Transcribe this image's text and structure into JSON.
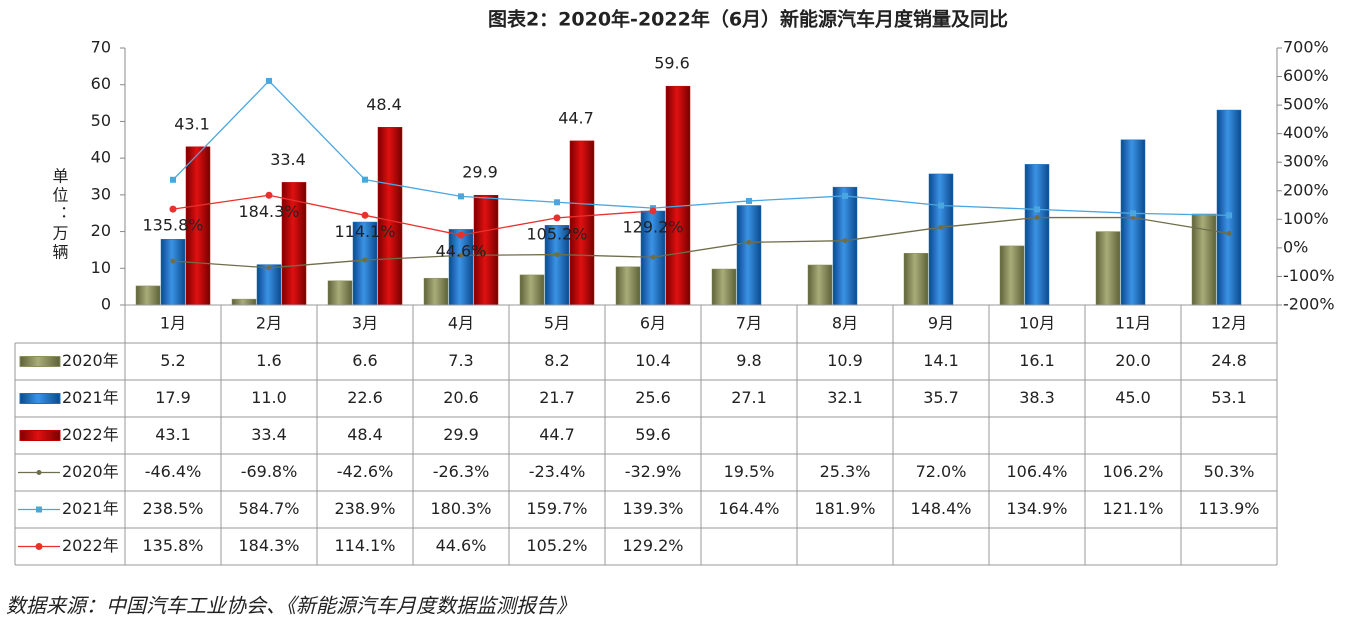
{
  "chart_data": {
    "type": "bar_line_table",
    "title": "图表2：2020年-2022年（6月）新能源汽车月度销量及同比",
    "y_label": "单位：万辆",
    "source": "数据来源：中国汽车工业协会、《新能源汽车月度数据监测报告》",
    "categories": [
      "1月",
      "2月",
      "3月",
      "4月",
      "5月",
      "6月",
      "7月",
      "8月",
      "9月",
      "10月",
      "11月",
      "12月"
    ],
    "ylim": [
      0,
      70
    ],
    "yticks": [
      0,
      10,
      20,
      30,
      40,
      50,
      60,
      70
    ],
    "y2lim": [
      -200,
      700
    ],
    "y2ticks": [
      {
        "value": -200,
        "label": "-200%"
      },
      {
        "value": -100,
        "label": "-100%"
      },
      {
        "value": 0,
        "label": "0%"
      },
      {
        "value": 100,
        "label": "100%"
      },
      {
        "value": 200,
        "label": "200%"
      },
      {
        "value": 300,
        "label": "300%"
      },
      {
        "value": 400,
        "label": "400%"
      },
      {
        "value": 500,
        "label": "500%"
      },
      {
        "value": 600,
        "label": "600%"
      },
      {
        "value": 700,
        "label": "700%"
      }
    ],
    "series": [
      {
        "name": "2020年",
        "kind": "bar",
        "color": "#8b905c",
        "values": [
          5.2,
          1.6,
          6.6,
          7.3,
          8.2,
          10.4,
          9.8,
          10.9,
          14.1,
          16.1,
          20.0,
          24.8
        ],
        "value_labels": [
          "5.2",
          "1.6",
          "6.6",
          "7.3",
          "8.2",
          "10.4",
          "9.8",
          "10.9",
          "14.1",
          "16.1",
          "20.0",
          "24.8"
        ]
      },
      {
        "name": "2021年",
        "kind": "bar",
        "color": "#1a6fc4",
        "values": [
          17.9,
          11.0,
          22.6,
          20.6,
          21.7,
          25.6,
          27.1,
          32.1,
          35.7,
          38.3,
          45.0,
          53.1
        ],
        "value_labels": [
          "17.9",
          "11.0",
          "22.6",
          "20.6",
          "21.7",
          "25.6",
          "27.1",
          "32.1",
          "35.7",
          "38.3",
          "45.0",
          "53.1"
        ]
      },
      {
        "name": "2022年",
        "kind": "bar",
        "color": "#c00000",
        "values": [
          43.1,
          33.4,
          48.4,
          29.9,
          44.7,
          59.6,
          null,
          null,
          null,
          null,
          null,
          null
        ],
        "value_labels": [
          "43.1",
          "33.4",
          "48.4",
          "29.9",
          "44.7",
          "59.6",
          null,
          null,
          null,
          null,
          null,
          null
        ],
        "show_labels": true
      },
      {
        "name": "2020年",
        "kind": "line",
        "axis": "y2",
        "color": "#6e6e4a",
        "values": [
          -46.4,
          -69.8,
          -42.6,
          -26.3,
          -23.4,
          -32.9,
          19.5,
          25.3,
          72.0,
          106.4,
          106.2,
          50.3
        ],
        "value_labels": [
          "-46.4%",
          "-69.8%",
          "-42.6%",
          "-26.3%",
          "-23.4%",
          "-32.9%",
          "19.5%",
          "25.3%",
          "72.0%",
          "106.4%",
          "106.2%",
          "50.3%"
        ]
      },
      {
        "name": "2021年",
        "kind": "line",
        "axis": "y2",
        "color": "#4aa6e0",
        "values": [
          238.5,
          584.7,
          238.9,
          180.3,
          159.7,
          139.3,
          164.4,
          181.9,
          148.4,
          134.9,
          121.1,
          113.9
        ],
        "value_labels": [
          "238.5%",
          "584.7%",
          "238.9%",
          "180.3%",
          "159.7%",
          "139.3%",
          "164.4%",
          "181.9%",
          "148.4%",
          "134.9%",
          "121.1%",
          "113.9%"
        ]
      },
      {
        "name": "2022年",
        "kind": "line",
        "axis": "y2",
        "color": "#e8302c",
        "values": [
          135.8,
          184.3,
          114.1,
          44.6,
          105.2,
          129.2,
          null,
          null,
          null,
          null,
          null,
          null
        ],
        "value_labels": [
          "135.8%",
          "184.3%",
          "114.1%",
          "44.6%",
          "105.2%",
          "129.2%",
          null,
          null,
          null,
          null,
          null,
          null
        ],
        "show_labels": true
      }
    ]
  }
}
